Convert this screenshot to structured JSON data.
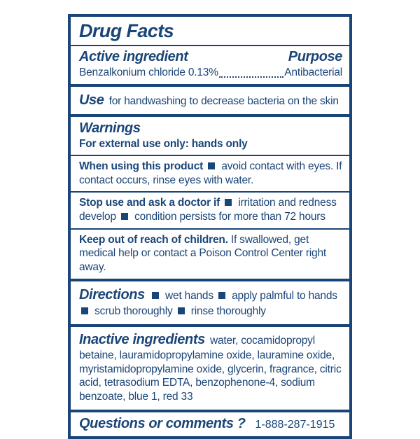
{
  "colors": {
    "navy": "#1a4578",
    "background": "#ffffff"
  },
  "label": {
    "title": "Drug Facts",
    "active_ingredient": {
      "heading": "Active ingredient",
      "purpose_heading": "Purpose",
      "name": "Benzalkonium chloride 0.13%",
      "purpose": "Antibacterial"
    },
    "use": {
      "heading": "Use",
      "text": "for handwashing to decrease bacteria on the skin"
    },
    "warnings": {
      "heading": "Warnings",
      "external_use": "For external use only: hands only",
      "when_using": {
        "label": "When using this product",
        "text": "avoid contact with eyes. If contact occurs, rinse eyes with water."
      },
      "stop_use": {
        "label": "Stop use and ask a doctor if",
        "items": [
          "irritation and redness develop",
          "condition persists for more than 72 hours"
        ]
      },
      "keep_out": {
        "label": "Keep out of reach of children.",
        "text": "If swallowed, get medical help or contact a Poison Control Center right away."
      }
    },
    "directions": {
      "heading": "Directions",
      "items": [
        "wet hands",
        "apply palmful to hands",
        "scrub thoroughly",
        "rinse thoroughly"
      ]
    },
    "inactive": {
      "heading": "Inactive ingredients",
      "text": "water, cocamidopropyl betaine, lauramidopropylamine oxide, lauramine oxide, myristamidopropylamine oxide, glycerin, fragrance, citric acid, tetrasodium EDTA, benzophenone-4, sodium benzoate, blue 1, red 33"
    },
    "questions": {
      "heading": "Questions or comments ?",
      "phone": "1-888-287-1915"
    }
  }
}
